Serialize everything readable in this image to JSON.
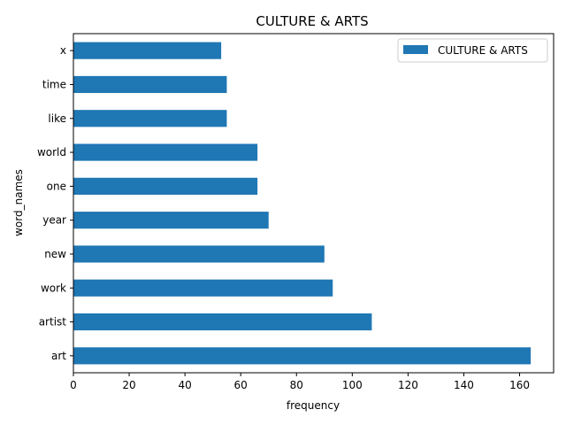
{
  "chart_data": {
    "type": "bar",
    "orientation": "horizontal",
    "title": "CULTURE & ARTS",
    "xlabel": "frequency",
    "ylabel": "word_names",
    "categories": [
      "art",
      "artist",
      "work",
      "new",
      "year",
      "one",
      "world",
      "like",
      "time",
      "x"
    ],
    "series": [
      {
        "name": "CULTURE & ARTS",
        "color": "#1f77b4",
        "values": [
          164,
          107,
          93,
          90,
          70,
          66,
          66,
          55,
          55,
          53
        ]
      }
    ],
    "xlim": [
      0,
      172.2
    ],
    "xticks": [
      0,
      20,
      40,
      60,
      80,
      100,
      120,
      140,
      160
    ],
    "grid": false,
    "legend_position": "top-right"
  }
}
